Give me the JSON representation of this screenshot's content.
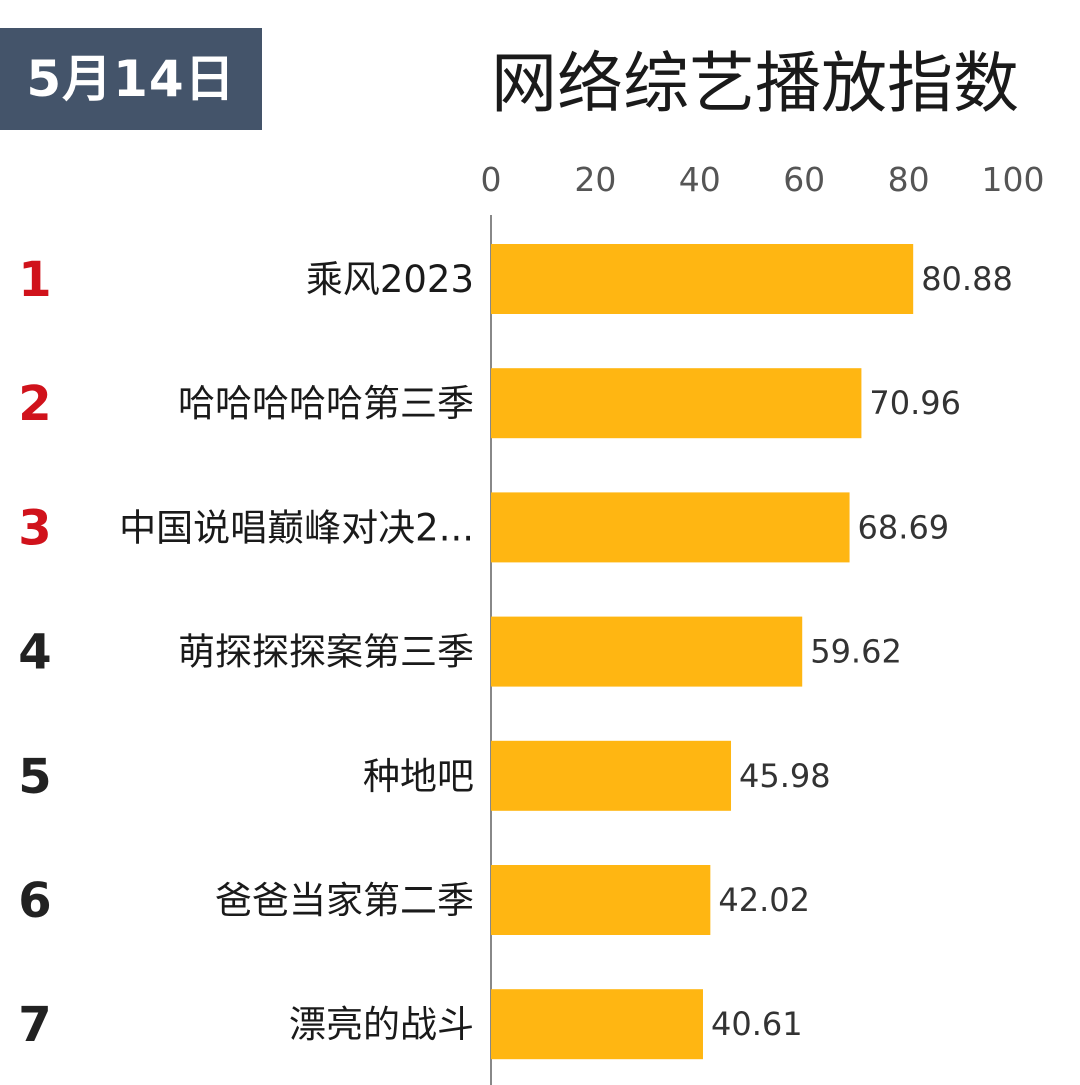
{
  "header": {
    "date": "5月14日",
    "title": "网络综艺播放指数"
  },
  "colors": {
    "bar": "#ffb612",
    "rank_top": "#d0121b",
    "rank_other": "#222222",
    "badge": "#44546a",
    "axis": "#888888"
  },
  "chart_data": {
    "type": "bar",
    "orientation": "horizontal",
    "title": "网络综艺播放指数",
    "xlim": [
      0,
      100
    ],
    "xticks": [
      0,
      20,
      40,
      60,
      80,
      100
    ],
    "axis_position": "top",
    "grid": false,
    "ranks": [
      "1",
      "2",
      "3",
      "4",
      "5",
      "6",
      "7"
    ],
    "categories": [
      "乘风2023",
      "哈哈哈哈哈第三季",
      "中国说唱巅峰对决2...",
      "萌探探探案第三季",
      "种地吧",
      "爸爸当家第二季",
      "漂亮的战斗"
    ],
    "values": [
      80.88,
      70.96,
      68.69,
      59.62,
      45.98,
      42.02,
      40.61
    ],
    "value_labels": [
      "80.88",
      "70.96",
      "68.69",
      "59.62",
      "45.98",
      "42.02",
      "40.61"
    ]
  }
}
